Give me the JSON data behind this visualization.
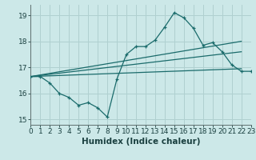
{
  "background_color": "#cce8e8",
  "grid_color": "#b0d0d0",
  "line_color": "#1a6b6b",
  "xlabel": "Humidex (Indice chaleur)",
  "xlim": [
    0,
    23
  ],
  "ylim": [
    14.8,
    19.4
  ],
  "yticks": [
    15,
    16,
    17,
    18,
    19
  ],
  "xticks": [
    0,
    1,
    2,
    3,
    4,
    5,
    6,
    7,
    8,
    9,
    10,
    11,
    12,
    13,
    14,
    15,
    16,
    17,
    18,
    19,
    20,
    21,
    22,
    23
  ],
  "main_x": [
    0,
    1,
    2,
    3,
    4,
    5,
    6,
    7,
    8,
    9,
    10,
    11,
    12,
    13,
    14,
    15,
    16,
    17,
    18,
    19,
    20,
    21,
    22,
    23
  ],
  "main_y": [
    16.65,
    16.65,
    16.4,
    16.0,
    15.85,
    15.55,
    15.65,
    15.45,
    15.1,
    16.55,
    17.5,
    17.8,
    17.8,
    18.05,
    18.55,
    19.1,
    18.9,
    18.5,
    17.85,
    17.95,
    17.6,
    17.1,
    16.85,
    16.85
  ],
  "trend1_x": [
    0,
    22
  ],
  "trend1_y": [
    16.65,
    18.0
  ],
  "trend2_x": [
    0,
    22
  ],
  "trend2_y": [
    16.65,
    17.6
  ],
  "trend3_x": [
    0,
    22
  ],
  "trend3_y": [
    16.65,
    16.95
  ],
  "tick_fontsize": 6.5,
  "label_fontsize": 7.5
}
